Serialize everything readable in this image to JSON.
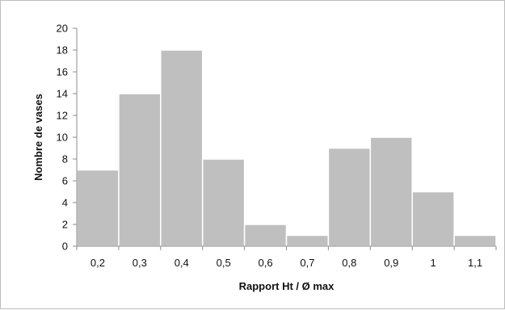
{
  "chart_data": {
    "type": "bar",
    "categories": [
      "0,2",
      "0,3",
      "0,4",
      "0,5",
      "0,6",
      "0,7",
      "0,8",
      "0,9",
      "1",
      "1,1"
    ],
    "values": [
      7,
      14,
      18,
      8,
      2,
      1,
      9,
      10,
      5,
      1
    ],
    "xlabel": "Rapport Ht / Ø max",
    "ylabel": "Nombre de vases",
    "ylim": [
      0,
      20
    ],
    "yticks": [
      "0",
      "2",
      "4",
      "6",
      "8",
      "10",
      "12",
      "14",
      "16",
      "18",
      "20"
    ],
    "grid": false,
    "legend": "none",
    "bar_color": "#bfbfbf",
    "bar_edge_color": "#ffffff"
  }
}
